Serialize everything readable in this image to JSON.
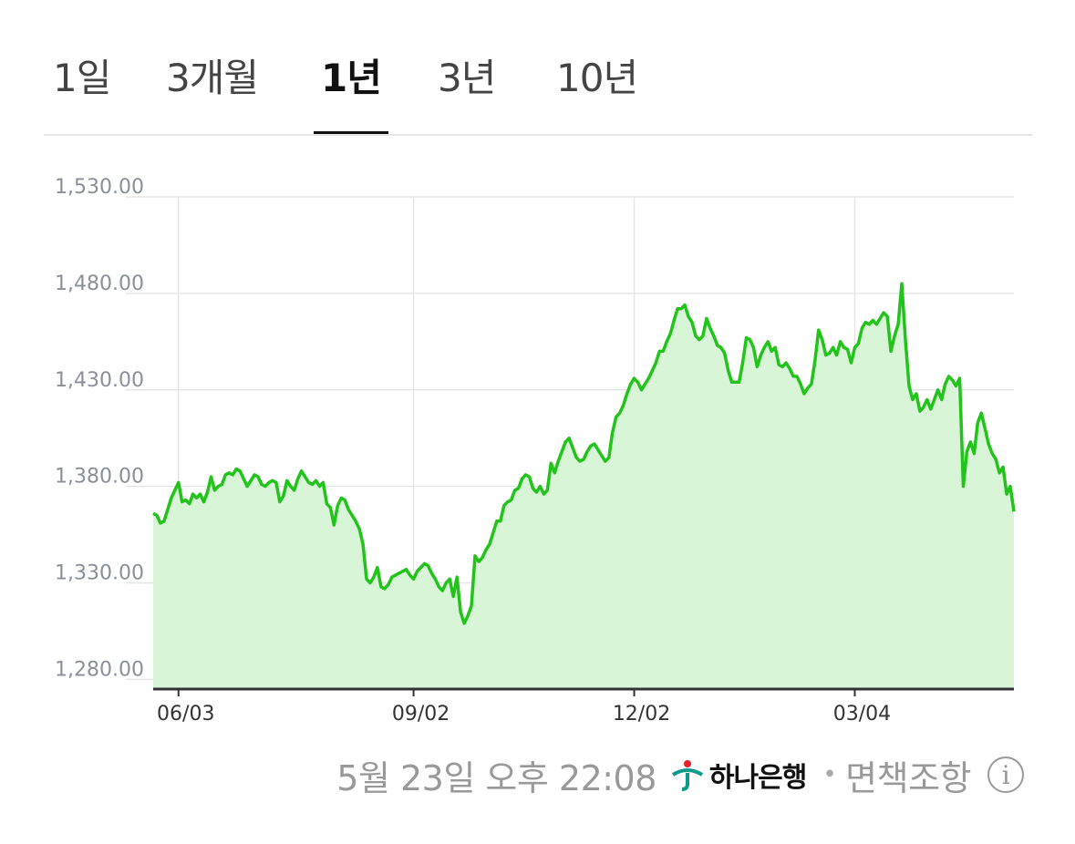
{
  "tabs": [
    {
      "label": "1일",
      "active": false
    },
    {
      "label": "3개월",
      "active": false
    },
    {
      "label": "1년",
      "active": true
    },
    {
      "label": "3년",
      "active": false
    },
    {
      "label": "10년",
      "active": false
    }
  ],
  "footer": {
    "timestamp": "5월 23일 오후 22:08",
    "bank_name": "하나은행",
    "bank_icon": "hana-bank-logo",
    "separator": "•",
    "disclaimer": "면책조항",
    "info_icon": "info-circle-icon",
    "info_glyph": "i"
  },
  "colors": {
    "line": "#22c31a",
    "fill": "#d8f5d8",
    "grid": "#e6e6e6",
    "axis": "#333333",
    "tick_text": "#8a8f99",
    "hana_green": "#0a9a8c",
    "hana_red": "#e8202a"
  },
  "chart_data": {
    "type": "area",
    "title": "",
    "xlabel": "",
    "ylabel": "",
    "ylim": [
      1275,
      1530
    ],
    "y_ticks": [
      1530,
      1480,
      1430,
      1380,
      1330,
      1280
    ],
    "y_tick_labels": [
      "1,530.00",
      "1,480.00",
      "1,430.00",
      "1,380.00",
      "1,330.00",
      "1,280.00"
    ],
    "x_tick_labels": [
      "06/03",
      "09/02",
      "12/02",
      "03/04"
    ],
    "x_tick_index": [
      7,
      72,
      133,
      194
    ],
    "grid": true,
    "series": [
      {
        "values": [
          1366,
          1365,
          1361,
          1362,
          1368,
          1374,
          1378,
          1382,
          1372,
          1373,
          1371,
          1376,
          1374,
          1376,
          1372,
          1377,
          1385,
          1378,
          1380,
          1381,
          1386,
          1387,
          1386,
          1389,
          1388,
          1384,
          1380,
          1383,
          1386,
          1385,
          1381,
          1380,
          1382,
          1383,
          1382,
          1372,
          1375,
          1383,
          1380,
          1378,
          1384,
          1388,
          1385,
          1382,
          1381,
          1383,
          1380,
          1382,
          1371,
          1369,
          1360,
          1370,
          1374,
          1373,
          1368,
          1365,
          1362,
          1358,
          1350,
          1332,
          1330,
          1333,
          1338,
          1328,
          1327,
          1329,
          1333,
          1334,
          1335,
          1336,
          1337,
          1334,
          1332,
          1336,
          1338,
          1340,
          1339,
          1335,
          1332,
          1328,
          1326,
          1330,
          1332,
          1323,
          1333,
          1315,
          1309,
          1313,
          1318,
          1344,
          1341,
          1343,
          1347,
          1350,
          1356,
          1362,
          1362,
          1370,
          1372,
          1373,
          1378,
          1379,
          1384,
          1386,
          1385,
          1379,
          1377,
          1380,
          1376,
          1378,
          1392,
          1387,
          1393,
          1398,
          1403,
          1405,
          1400,
          1395,
          1393,
          1394,
          1398,
          1401,
          1402,
          1399,
          1396,
          1393,
          1395,
          1408,
          1416,
          1418,
          1422,
          1428,
          1433,
          1436,
          1434,
          1430,
          1433,
          1436,
          1440,
          1444,
          1450,
          1450,
          1455,
          1459,
          1466,
          1472,
          1472,
          1474,
          1468,
          1465,
          1458,
          1456,
          1458,
          1467,
          1462,
          1458,
          1453,
          1452,
          1449,
          1440,
          1434,
          1434,
          1434,
          1444,
          1457,
          1456,
          1452,
          1442,
          1448,
          1452,
          1455,
          1450,
          1452,
          1443,
          1442,
          1444,
          1441,
          1437,
          1437,
          1433,
          1428,
          1431,
          1433,
          1445,
          1461,
          1456,
          1448,
          1449,
          1452,
          1448,
          1455,
          1452,
          1451,
          1444,
          1452,
          1454,
          1462,
          1465,
          1464,
          1466,
          1464,
          1467,
          1470,
          1468,
          1450,
          1458,
          1464,
          1485,
          1456,
          1432,
          1425,
          1428,
          1419,
          1421,
          1425,
          1420,
          1425,
          1430,
          1425,
          1433,
          1437,
          1435,
          1432,
          1436,
          1380,
          1398,
          1403,
          1397,
          1413,
          1418,
          1410,
          1402,
          1397,
          1394,
          1387,
          1390,
          1376,
          1380,
          1367
        ]
      }
    ]
  }
}
